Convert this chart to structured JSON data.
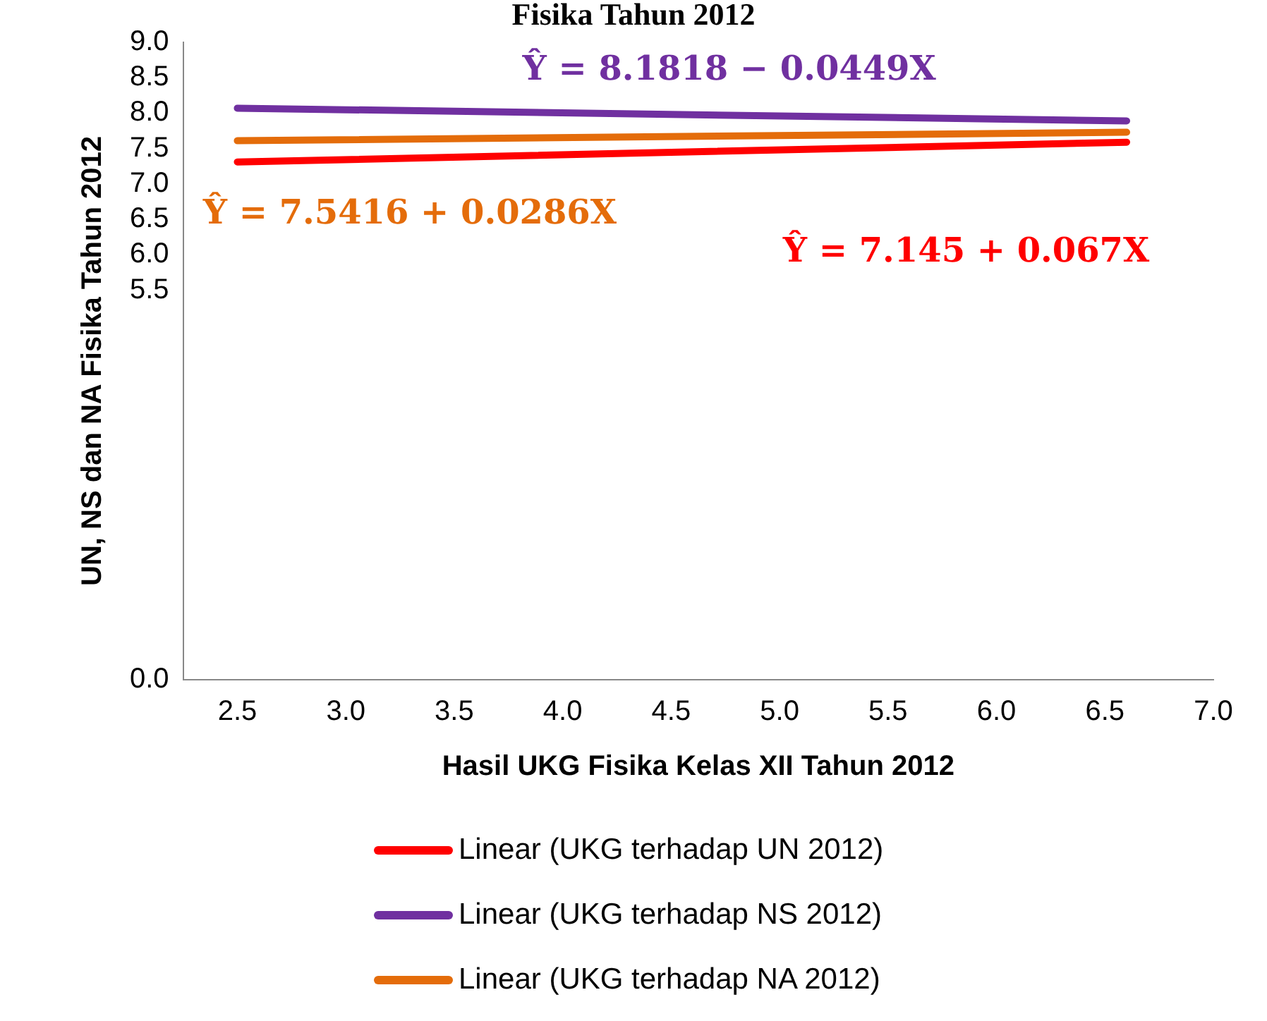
{
  "chart_data": {
    "type": "line",
    "title": "Fisika Tahun 2012",
    "xlabel": "Hasil UKG Fisika Kelas XII Tahun 2012",
    "ylabel": "UN, NS dan NA Fisika Tahun 2012",
    "xlim": [
      2.25,
      7.0
    ],
    "xticks": [
      {
        "value": 2.5,
        "label": "2.5"
      },
      {
        "value": 3.0,
        "label": "3.0"
      },
      {
        "value": 3.5,
        "label": "3.5"
      },
      {
        "value": 4.0,
        "label": "4.0"
      },
      {
        "value": 4.5,
        "label": "4.5"
      },
      {
        "value": 5.0,
        "label": "5.0"
      },
      {
        "value": 5.5,
        "label": "5.5"
      },
      {
        "value": 6.0,
        "label": "6.0"
      },
      {
        "value": 6.5,
        "label": "6.5"
      },
      {
        "value": 7.0,
        "label": "7.0"
      }
    ],
    "ylim": [
      0,
      9.0
    ],
    "yticks": [
      {
        "value": 0,
        "label": "0.0"
      },
      {
        "value": 5.5,
        "label": "5.5"
      },
      {
        "value": 6.0,
        "label": "6.0"
      },
      {
        "value": 6.5,
        "label": "6.5"
      },
      {
        "value": 7.0,
        "label": "7.0"
      },
      {
        "value": 7.5,
        "label": "7.5"
      },
      {
        "value": 8.0,
        "label": "8.0"
      },
      {
        "value": 8.5,
        "label": "8.5"
      },
      {
        "value": 9.0,
        "label": "9.0"
      }
    ],
    "x": [
      2.5,
      6.6
    ],
    "grid": false,
    "legend": "bottom",
    "marker": "none",
    "line_style": "solid",
    "series": [
      {
        "name": "Linear (UKG terhadap UN 2012)",
        "color": "#ff0000",
        "values": [
          7.31,
          7.59
        ]
      },
      {
        "name": "Linear (UKG terhadap NS 2012)",
        "color": "#7030a0",
        "values": [
          8.07,
          7.89
        ]
      },
      {
        "name": "Linear (UKG terhadap NA 2012)",
        "color": "#e46c0a",
        "values": [
          7.61,
          7.73
        ]
      }
    ],
    "annotations": [
      "Ŷ = 7.145 + 0.067X",
      "Ŷ = 8.1818 − 0.0449X",
      "Ŷ = 7.5416 + 0.0286X"
    ]
  }
}
